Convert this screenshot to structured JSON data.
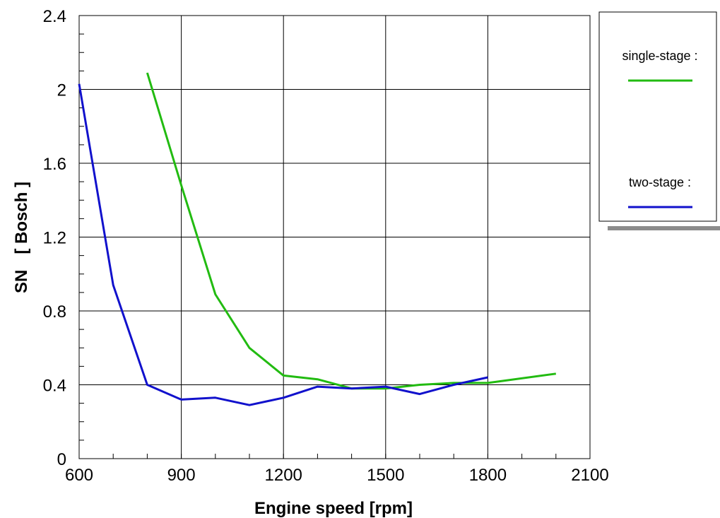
{
  "chart_data": {
    "type": "line",
    "title": "",
    "xlabel": "Engine speed [rpm]",
    "ylabel_parts": [
      "SN",
      "[ Bosch ]"
    ],
    "xlim": [
      600,
      2100
    ],
    "ylim": [
      0,
      2.4
    ],
    "x_ticks": [
      "600",
      "900",
      "1200",
      "1500",
      "1800",
      "2100"
    ],
    "y_ticks": [
      "0",
      "0.4",
      "0.8",
      "1.2",
      "1.6",
      "2",
      "2.4"
    ],
    "x_tick_values": [
      600,
      900,
      1200,
      1500,
      1800,
      2100
    ],
    "y_tick_values": [
      0,
      0.4,
      0.8,
      1.2,
      1.6,
      2.0,
      2.4
    ],
    "grid": true,
    "legend_position": "right",
    "series": [
      {
        "name": "single-stage :",
        "color": "#22bb11",
        "x": [
          800,
          900,
          1000,
          1100,
          1200,
          1300,
          1400,
          1500,
          1600,
          1700,
          1800,
          2000
        ],
        "y": [
          2.09,
          1.48,
          0.89,
          0.6,
          0.45,
          0.43,
          0.38,
          0.38,
          0.4,
          0.41,
          0.41,
          0.46
        ]
      },
      {
        "name": "two-stage :",
        "color": "#1111cc",
        "x": [
          600,
          700,
          800,
          900,
          1000,
          1100,
          1200,
          1300,
          1400,
          1500,
          1600,
          1700,
          1800
        ],
        "y": [
          2.03,
          0.94,
          0.4,
          0.32,
          0.33,
          0.29,
          0.33,
          0.39,
          0.38,
          0.39,
          0.35,
          0.4,
          0.44
        ]
      }
    ]
  }
}
